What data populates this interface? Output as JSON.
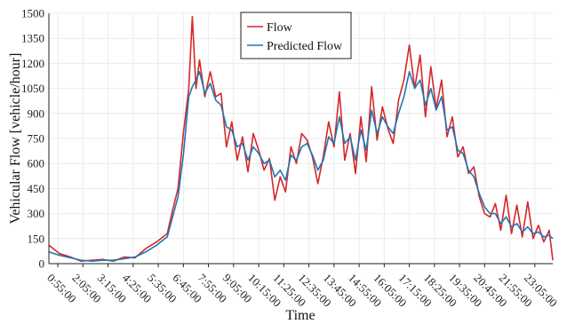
{
  "chart_data": {
    "type": "line",
    "xlabel": "Time",
    "ylabel": "Vehicular Flow [vehicle/hour]",
    "ylim": [
      0,
      1500
    ],
    "yticks": [
      0,
      150,
      300,
      450,
      600,
      750,
      900,
      1050,
      1200,
      1350,
      1500
    ],
    "xlim": [
      "0:30:00",
      "23:55:00"
    ],
    "xticks": [
      "0:55:00",
      "2:05:00",
      "3:15:00",
      "4:25:00",
      "5:35:00",
      "6:45:00",
      "7:55:00",
      "9:05:00",
      "10:15:00",
      "11:25:00",
      "12:35:00",
      "13:45:00",
      "14:55:00",
      "16:05:00",
      "17:15:00",
      "18:25:00",
      "19:35:00",
      "20:45:00",
      "21:55:00",
      "23:05:00"
    ],
    "grid": true,
    "legend_position": "top-center",
    "series": [
      {
        "name": "Flow",
        "color": "#d62728",
        "x": [
          "0:30:00",
          "1:00:00",
          "1:30:00",
          "2:00:00",
          "2:30:00",
          "3:00:00",
          "3:30:00",
          "4:00:00",
          "4:30:00",
          "5:00:00",
          "5:30:00",
          "6:00:00",
          "6:15:00",
          "6:30:00",
          "6:45:00",
          "7:00:00",
          "7:10:00",
          "7:20:00",
          "7:30:00",
          "7:45:00",
          "8:00:00",
          "8:15:00",
          "8:30:00",
          "8:45:00",
          "9:00:00",
          "9:15:00",
          "9:30:00",
          "9:45:00",
          "10:00:00",
          "10:15:00",
          "10:30:00",
          "10:45:00",
          "11:00:00",
          "11:15:00",
          "11:30:00",
          "11:45:00",
          "12:00:00",
          "12:15:00",
          "12:30:00",
          "12:45:00",
          "13:00:00",
          "13:15:00",
          "13:30:00",
          "13:45:00",
          "14:00:00",
          "14:15:00",
          "14:30:00",
          "14:45:00",
          "15:00:00",
          "15:15:00",
          "15:30:00",
          "15:45:00",
          "16:00:00",
          "16:15:00",
          "16:30:00",
          "16:45:00",
          "17:00:00",
          "17:15:00",
          "17:30:00",
          "17:45:00",
          "18:00:00",
          "18:15:00",
          "18:30:00",
          "18:45:00",
          "19:00:00",
          "19:15:00",
          "19:30:00",
          "19:45:00",
          "20:00:00",
          "20:15:00",
          "20:30:00",
          "20:45:00",
          "21:00:00",
          "21:15:00",
          "21:30:00",
          "21:45:00",
          "22:00:00",
          "22:15:00",
          "22:30:00",
          "22:45:00",
          "23:00:00",
          "23:15:00",
          "23:30:00",
          "23:45:00",
          "23:55:00"
        ],
        "values": [
          110,
          60,
          40,
          15,
          20,
          25,
          15,
          40,
          35,
          90,
          130,
          180,
          320,
          450,
          780,
          1050,
          1480,
          1050,
          1220,
          1000,
          1150,
          1000,
          1020,
          700,
          850,
          620,
          760,
          550,
          780,
          680,
          560,
          630,
          380,
          520,
          430,
          700,
          600,
          780,
          740,
          640,
          480,
          640,
          850,
          700,
          1030,
          620,
          780,
          540,
          880,
          610,
          1060,
          740,
          940,
          810,
          720,
          980,
          1100,
          1310,
          1050,
          1250,
          880,
          1180,
          930,
          1100,
          760,
          880,
          640,
          700,
          540,
          580,
          400,
          300,
          280,
          360,
          200,
          410,
          180,
          350,
          160,
          370,
          150,
          230,
          130,
          200,
          20
        ]
      },
      {
        "name": "Predicted Flow",
        "color": "#1f77b4",
        "x": [
          "0:30:00",
          "1:00:00",
          "1:30:00",
          "2:00:00",
          "2:30:00",
          "3:00:00",
          "3:30:00",
          "4:00:00",
          "4:30:00",
          "5:00:00",
          "5:30:00",
          "6:00:00",
          "6:15:00",
          "6:30:00",
          "6:45:00",
          "7:00:00",
          "7:10:00",
          "7:20:00",
          "7:30:00",
          "7:45:00",
          "8:00:00",
          "8:15:00",
          "8:30:00",
          "8:45:00",
          "9:00:00",
          "9:15:00",
          "9:30:00",
          "9:45:00",
          "10:00:00",
          "10:15:00",
          "10:30:00",
          "10:45:00",
          "11:00:00",
          "11:15:00",
          "11:30:00",
          "11:45:00",
          "12:00:00",
          "12:15:00",
          "12:30:00",
          "12:45:00",
          "13:00:00",
          "13:15:00",
          "13:30:00",
          "13:45:00",
          "14:00:00",
          "14:15:00",
          "14:30:00",
          "14:45:00",
          "15:00:00",
          "15:15:00",
          "15:30:00",
          "15:45:00",
          "16:00:00",
          "16:15:00",
          "16:30:00",
          "16:45:00",
          "17:00:00",
          "17:15:00",
          "17:30:00",
          "17:45:00",
          "18:00:00",
          "18:15:00",
          "18:30:00",
          "18:45:00",
          "19:00:00",
          "19:15:00",
          "19:30:00",
          "19:45:00",
          "20:00:00",
          "20:15:00",
          "20:30:00",
          "20:45:00",
          "21:00:00",
          "21:15:00",
          "21:30:00",
          "21:45:00",
          "22:00:00",
          "22:15:00",
          "22:30:00",
          "22:45:00",
          "23:00:00",
          "23:15:00",
          "23:30:00",
          "23:45:00",
          "23:55:00"
        ],
        "values": [
          70,
          50,
          35,
          20,
          15,
          20,
          20,
          30,
          40,
          70,
          110,
          160,
          280,
          400,
          650,
          1000,
          1060,
          1100,
          1150,
          1020,
          1080,
          980,
          950,
          820,
          800,
          700,
          720,
          620,
          700,
          660,
          600,
          620,
          520,
          560,
          500,
          650,
          620,
          700,
          720,
          650,
          560,
          620,
          760,
          720,
          880,
          720,
          760,
          620,
          800,
          680,
          920,
          780,
          880,
          820,
          780,
          900,
          1000,
          1150,
          1050,
          1100,
          950,
          1050,
          920,
          1000,
          800,
          820,
          680,
          660,
          560,
          520,
          420,
          340,
          300,
          300,
          240,
          280,
          220,
          240,
          190,
          220,
          180,
          190,
          160,
          170,
          150
        ]
      }
    ]
  }
}
